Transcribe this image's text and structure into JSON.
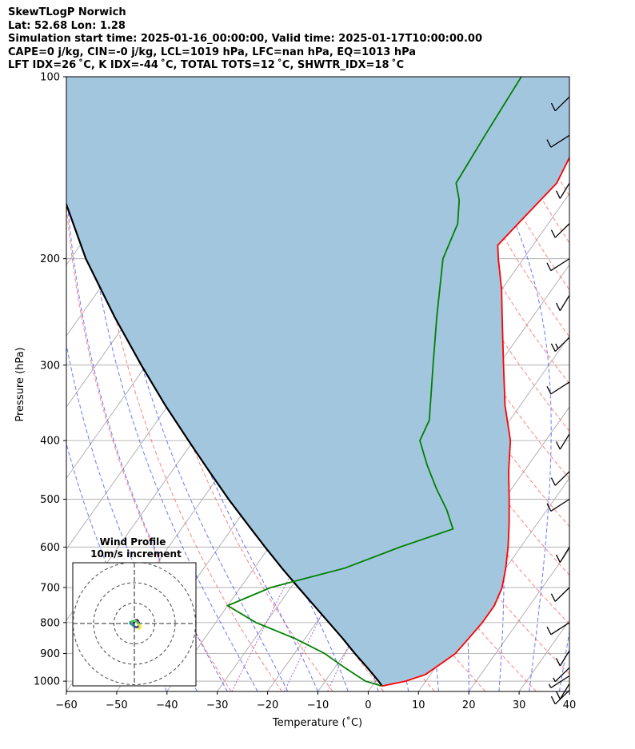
{
  "header": {
    "line1": "SkewTLogP Norwich",
    "line2": "Lat: 52.68   Lon: 1.28",
    "line3": "Simulation start time: 2025-01-16_00:00:00, Valid time: 2025-01-17T10:00:00.00",
    "line4": "CAPE=0 j/kg, CIN=-0 j/kg, LCL=1019 hPa, LFC=nan hPa, EQ=1013 hPa",
    "line5": "LFT IDX=26 ˚C, K IDX=-44 ˚C, TOTAL TOTS=12 ˚C, SHWTR_IDX=18 ˚C"
  },
  "chart_data": {
    "type": "skew-t log-p",
    "xlabel": "Temperature ($^\\circ$C)",
    "xlabel_display": "Temperature (˚C)",
    "ylabel": "Pressure (hPa)",
    "xlim": [
      -60,
      40
    ],
    "ylim": [
      1040,
      100
    ],
    "yscale": "log",
    "x_ticks": [
      "−60",
      "−50",
      "−40",
      "−30",
      "−20",
      "−10",
      "0",
      "10",
      "20",
      "30",
      "40"
    ],
    "y_ticks": [
      "100",
      "200",
      "300",
      "400",
      "500",
      "600",
      "700",
      "800",
      "900",
      "1000"
    ],
    "colors": {
      "temperature": "#ff0000",
      "dewpoint": "#008000",
      "parcel": "#000000",
      "shade": "#a3c6df",
      "dry_adiabat": "#ff5a5a",
      "moist_adiabat": "#3a4bff",
      "isotherm": "#aaaaaa",
      "mixing_ratio": "#a040c0"
    },
    "temperature": [
      {
        "p": 1019,
        "t": 2
      },
      {
        "p": 1000,
        "t": 6
      },
      {
        "p": 975,
        "t": 9
      },
      {
        "p": 950,
        "t": 10
      },
      {
        "p": 925,
        "t": 11
      },
      {
        "p": 900,
        "t": 12
      },
      {
        "p": 850,
        "t": 12.5
      },
      {
        "p": 800,
        "t": 13
      },
      {
        "p": 750,
        "t": 13
      },
      {
        "p": 700,
        "t": 12
      },
      {
        "p": 650,
        "t": 10
      },
      {
        "p": 600,
        "t": 7.5
      },
      {
        "p": 550,
        "t": 4.5
      },
      {
        "p": 500,
        "t": 1
      },
      {
        "p": 450,
        "t": -3
      },
      {
        "p": 400,
        "t": -7
      },
      {
        "p": 350,
        "t": -13
      },
      {
        "p": 300,
        "t": -19
      },
      {
        "p": 250,
        "t": -26
      },
      {
        "p": 225,
        "t": -30
      },
      {
        "p": 200,
        "t": -35
      },
      {
        "p": 190,
        "t": -37
      },
      {
        "p": 175,
        "t": -36
      },
      {
        "p": 150,
        "t": -34
      },
      {
        "p": 125,
        "t": -36
      },
      {
        "p": 100,
        "t": -42
      }
    ],
    "dewpoint": [
      {
        "p": 1019,
        "t": 2
      },
      {
        "p": 1000,
        "t": -2
      },
      {
        "p": 950,
        "t": -8
      },
      {
        "p": 900,
        "t": -14
      },
      {
        "p": 850,
        "t": -22
      },
      {
        "p": 800,
        "t": -32
      },
      {
        "p": 750,
        "t": -40
      },
      {
        "p": 700,
        "t": -34
      },
      {
        "p": 650,
        "t": -22
      },
      {
        "p": 600,
        "t": -14
      },
      {
        "p": 560,
        "t": -6
      },
      {
        "p": 520,
        "t": -10
      },
      {
        "p": 480,
        "t": -15
      },
      {
        "p": 440,
        "t": -20
      },
      {
        "p": 400,
        "t": -25
      },
      {
        "p": 370,
        "t": -26
      },
      {
        "p": 300,
        "t": -33
      },
      {
        "p": 250,
        "t": -39
      },
      {
        "p": 200,
        "t": -46
      },
      {
        "p": 175,
        "t": -48
      },
      {
        "p": 160,
        "t": -51
      },
      {
        "p": 150,
        "t": -54
      },
      {
        "p": 125,
        "t": -55
      },
      {
        "p": 100,
        "t": -56
      }
    ],
    "parcel": [
      {
        "p": 1019,
        "t": 2
      },
      {
        "p": 1000,
        "t": 0.6
      },
      {
        "p": 950,
        "t": -3.5
      },
      {
        "p": 900,
        "t": -8
      },
      {
        "p": 850,
        "t": -12.5
      },
      {
        "p": 800,
        "t": -17.5
      },
      {
        "p": 750,
        "t": -22.8
      },
      {
        "p": 700,
        "t": -28.5
      },
      {
        "p": 650,
        "t": -34.5
      },
      {
        "p": 600,
        "t": -40.8
      },
      {
        "p": 550,
        "t": -47.5
      },
      {
        "p": 500,
        "t": -54.8
      },
      {
        "p": 450,
        "t": -62.5
      },
      {
        "p": 400,
        "t": -71
      },
      {
        "p": 350,
        "t": -80.5
      },
      {
        "p": 300,
        "t": -91
      },
      {
        "p": 250,
        "t": -103
      },
      {
        "p": 200,
        "t": -117
      },
      {
        "p": 150,
        "t": -133
      },
      {
        "p": 125,
        "t": -143
      },
      {
        "p": 100,
        "t": -154
      }
    ],
    "wind_barbs": [
      {
        "p": 1035,
        "wind_speed_kt": 10
      },
      {
        "p": 1010,
        "wind_speed_kt": 10
      },
      {
        "p": 980,
        "wind_speed_kt": 5
      },
      {
        "p": 950,
        "wind_speed_kt": 5
      },
      {
        "p": 890,
        "wind_speed_kt": 10
      },
      {
        "p": 800,
        "wind_speed_kt": 10
      },
      {
        "p": 700,
        "wind_speed_kt": 10
      },
      {
        "p": 600,
        "wind_speed_kt": 10
      },
      {
        "p": 500,
        "wind_speed_kt": 10
      },
      {
        "p": 450,
        "wind_speed_kt": 10
      },
      {
        "p": 390,
        "wind_speed_kt": 10
      },
      {
        "p": 320,
        "wind_speed_kt": 10
      },
      {
        "p": 270,
        "wind_speed_kt": 15
      },
      {
        "p": 230,
        "wind_speed_kt": 10
      },
      {
        "p": 200,
        "wind_speed_kt": 10
      },
      {
        "p": 175,
        "wind_speed_kt": 10
      },
      {
        "p": 150,
        "wind_speed_kt": 10
      },
      {
        "p": 125,
        "wind_speed_kt": 10
      },
      {
        "p": 108,
        "wind_speed_kt": 10
      }
    ],
    "inset": {
      "title_line1": "Wind Profile",
      "title_line2": "10m/s increment",
      "rings_ms": [
        10,
        20,
        30
      ],
      "hodograph_colors": [
        "#440154",
        "#3b528b",
        "#21918c",
        "#5ec962",
        "#fde725"
      ]
    }
  }
}
